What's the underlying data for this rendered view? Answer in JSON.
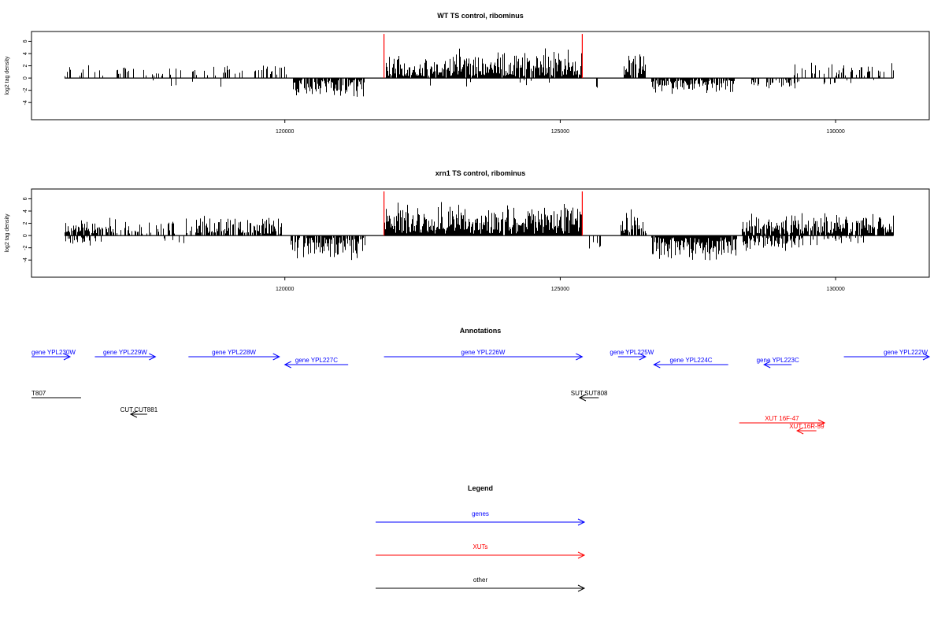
{
  "chart_data": [
    {
      "type": "bar",
      "title": "WT TS control, ribominus",
      "ylabel": "log2 tag density",
      "xlabel": "",
      "xlim": [
        115400,
        131700
      ],
      "ylim": [
        -6.8,
        7.6
      ],
      "x_ticks": [
        120000,
        125000,
        130000
      ],
      "x_tick_labels": [
        "120000",
        "125000",
        "130000"
      ],
      "y_ticks": [
        -4,
        -2,
        0,
        2,
        4,
        6
      ],
      "y_tick_labels": [
        "-4",
        "-2",
        "0",
        "2",
        "4",
        "6"
      ],
      "series_color": "#000000",
      "highlight_lines": {
        "color": "#ff0000",
        "x": [
          121800,
          125400
        ],
        "y_top": 7.2
      },
      "signal_segments": [
        {
          "x0": 116000,
          "x1": 120050,
          "sign": 1,
          "amp": 2.2,
          "density": 0.22
        },
        {
          "x0": 116500,
          "x1": 119200,
          "sign": -1,
          "amp": 1.6,
          "density": 0.03
        },
        {
          "x0": 120150,
          "x1": 121450,
          "sign": -1,
          "amp": 3.3,
          "density": 0.85
        },
        {
          "x0": 121800,
          "x1": 125400,
          "sign": 1,
          "amp": 4.6,
          "density": 0.92
        },
        {
          "x0": 122300,
          "x1": 125200,
          "sign": -1,
          "amp": 1.4,
          "density": 0.02
        },
        {
          "x0": 125500,
          "x1": 125900,
          "sign": -1,
          "amp": 2.0,
          "density": 0.12
        },
        {
          "x0": 126150,
          "x1": 126550,
          "sign": 1,
          "amp": 4.2,
          "density": 0.8
        },
        {
          "x0": 126650,
          "x1": 128150,
          "sign": -1,
          "amp": 2.4,
          "density": 0.8
        },
        {
          "x0": 128450,
          "x1": 129400,
          "sign": -1,
          "amp": 1.8,
          "density": 0.35
        },
        {
          "x0": 129200,
          "x1": 131050,
          "sign": 1,
          "amp": 2.4,
          "density": 0.3
        },
        {
          "x0": 129700,
          "x1": 130700,
          "sign": -1,
          "amp": 1.7,
          "density": 0.12
        }
      ]
    },
    {
      "type": "bar",
      "title": "xrn1 TS control, ribominus",
      "ylabel": "log2 tag density",
      "xlabel": "",
      "xlim": [
        115400,
        131700
      ],
      "ylim": [
        -6.8,
        7.6
      ],
      "x_ticks": [
        120000,
        125000,
        130000
      ],
      "x_tick_labels": [
        "120000",
        "125000",
        "130000"
      ],
      "y_ticks": [
        -4,
        -2,
        0,
        2,
        4,
        6
      ],
      "y_tick_labels": [
        "-4",
        "-2",
        "0",
        "2",
        "4",
        "6"
      ],
      "series_color": "#000000",
      "highlight_lines": {
        "color": "#ff0000",
        "x": [
          121800,
          125400
        ],
        "y_top": 7.2
      },
      "signal_segments": [
        {
          "x0": 116000,
          "x1": 116700,
          "sign": 1,
          "amp": 2.8,
          "density": 0.8
        },
        {
          "x0": 116000,
          "x1": 116700,
          "sign": -1,
          "amp": 1.5,
          "density": 0.2
        },
        {
          "x0": 116700,
          "x1": 118000,
          "sign": 1,
          "amp": 2.8,
          "density": 0.45
        },
        {
          "x0": 117800,
          "x1": 118200,
          "sign": -1,
          "amp": 1.2,
          "density": 0.1
        },
        {
          "x0": 118200,
          "x1": 119950,
          "sign": 1,
          "amp": 3.6,
          "density": 0.75
        },
        {
          "x0": 120100,
          "x1": 121450,
          "sign": -1,
          "amp": 4.0,
          "density": 0.85
        },
        {
          "x0": 121800,
          "x1": 125400,
          "sign": 1,
          "amp": 5.3,
          "density": 0.97
        },
        {
          "x0": 125500,
          "x1": 125800,
          "sign": -1,
          "amp": 2.5,
          "density": 0.2
        },
        {
          "x0": 126100,
          "x1": 126550,
          "sign": 1,
          "amp": 5.0,
          "density": 0.8
        },
        {
          "x0": 126650,
          "x1": 128200,
          "sign": -1,
          "amp": 4.2,
          "density": 0.97
        },
        {
          "x0": 128300,
          "x1": 129400,
          "sign": -1,
          "amp": 2.5,
          "density": 0.7
        },
        {
          "x0": 128300,
          "x1": 131050,
          "sign": 1,
          "amp": 3.5,
          "density": 0.85
        },
        {
          "x0": 129400,
          "x1": 130500,
          "sign": -1,
          "amp": 1.6,
          "density": 0.3
        }
      ]
    }
  ],
  "annotations": {
    "title": "Annotations",
    "colors": {
      "gene": "#0000ff",
      "xut": "#ff0000",
      "other": "#000000"
    },
    "features": [
      {
        "label": "gene YPL230W",
        "type": "gene",
        "strand": "+",
        "start": 115400,
        "end": 116100,
        "row": 0
      },
      {
        "label": "gene YPL229W",
        "type": "gene",
        "strand": "+",
        "start": 116550,
        "end": 117650,
        "row": 0
      },
      {
        "label": "gene YPL228W",
        "type": "gene",
        "strand": "+",
        "start": 118250,
        "end": 119900,
        "row": 0
      },
      {
        "label": "gene YPL227C",
        "type": "gene",
        "strand": "-",
        "start": 120000,
        "end": 121150,
        "row": 1
      },
      {
        "label": "gene YPL226W",
        "type": "gene",
        "strand": "+",
        "start": 121800,
        "end": 125400,
        "row": 0
      },
      {
        "label": "gene YPL225W",
        "type": "gene",
        "strand": "+",
        "start": 126050,
        "end": 126550,
        "row": 0
      },
      {
        "label": "gene YPL224C",
        "type": "gene",
        "strand": "-",
        "start": 126700,
        "end": 128050,
        "row": 1
      },
      {
        "label": "gene YPL223C",
        "type": "gene",
        "strand": "-",
        "start": 128700,
        "end": 129200,
        "row": 1
      },
      {
        "label": "gene YPL222W",
        "type": "gene",
        "strand": "+",
        "start": 130150,
        "end": 131700,
        "row": 0
      },
      {
        "label": "T807",
        "type": "other",
        "strand": "none",
        "start": 115400,
        "end": 116300,
        "row": 2
      },
      {
        "label": "SUT.SUT808",
        "type": "other",
        "strand": "-",
        "start": 125350,
        "end": 125700,
        "row": 2
      },
      {
        "label": "CUT.CUT881",
        "type": "other",
        "strand": "-",
        "start": 117200,
        "end": 117500,
        "row": 3
      },
      {
        "label": "XUT 16F-47",
        "type": "xut",
        "strand": "+",
        "start": 128250,
        "end": 129800,
        "row": 4
      },
      {
        "label": "XUT 16R-59",
        "type": "xut",
        "strand": "-",
        "start": 129300,
        "end": 129650,
        "row": 5
      }
    ]
  },
  "legend": {
    "title": "Legend",
    "items": [
      {
        "label": "genes",
        "color": "#0000ff"
      },
      {
        "label": "XUTs",
        "color": "#ff0000"
      },
      {
        "label": "other",
        "color": "#000000"
      }
    ]
  }
}
